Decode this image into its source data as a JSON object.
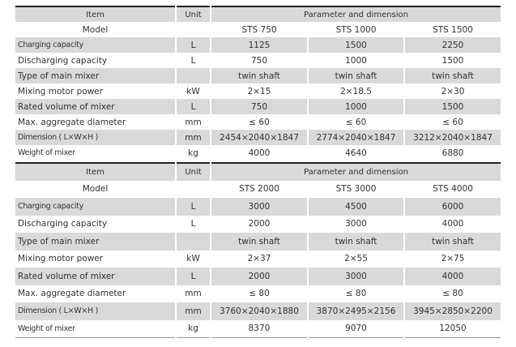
{
  "tables": [
    {
      "header": {
        "item": "Item",
        "unit": "Unit",
        "param": "Parameter and dimension"
      },
      "model_label": "Model",
      "models": [
        "STS 750",
        "STS 1000",
        "STS 1500"
      ],
      "rows": [
        {
          "label": "Charging capacity",
          "unit": "L",
          "values": [
            "1125",
            "1500",
            "2250"
          ]
        },
        {
          "label": "Discharging capacity",
          "unit": "L",
          "values": [
            "750",
            "1000",
            "1500"
          ]
        },
        {
          "label": "Type of main mixer",
          "unit": "",
          "values": [
            "twin shaft",
            "twin shaft",
            "twin shaft"
          ]
        },
        {
          "label": "Mixing motor power",
          "unit": "kW",
          "values": [
            "2×15",
            "2×18.5",
            "2×30"
          ]
        },
        {
          "label": "Rated volume of mixer",
          "unit": "L",
          "values": [
            "750",
            "1000",
            "1500"
          ]
        },
        {
          "label": "Max. aggregate diameter",
          "unit": "mm",
          "values": [
            "≤ 60",
            "≤ 60",
            "≤ 60"
          ]
        },
        {
          "label": "Dimension ( L×W×H )",
          "unit": "mm",
          "values": [
            "2454×2040×1847",
            "2774×2040×1847",
            "3212×2040×1847"
          ]
        },
        {
          "label": "Weight of mixer",
          "unit": "kg",
          "values": [
            "4000",
            "4640",
            "6880"
          ]
        }
      ]
    },
    {
      "header": {
        "item": "Item",
        "unit": "Unit",
        "param": "Parameter and dimension"
      },
      "model_label": "Model",
      "models": [
        "STS 2000",
        "STS 3000",
        "STS 4000"
      ],
      "rows": [
        {
          "label": "Charging capacity",
          "unit": "L",
          "values": [
            "3000",
            "4500",
            "6000"
          ]
        },
        {
          "label": "Discharging capacity",
          "unit": "L",
          "values": [
            "2000",
            "3000",
            "4000"
          ]
        },
        {
          "label": "Type of main mixer",
          "unit": "",
          "values": [
            "twin shaft",
            "twin shaft",
            "twin shaft"
          ]
        },
        {
          "label": "Mixing motor power",
          "unit": "kW",
          "values": [
            "2×37",
            "2×55",
            "2×75"
          ]
        },
        {
          "label": "Rated volume of mixer",
          "unit": "L",
          "values": [
            "2000",
            "3000",
            "4000"
          ]
        },
        {
          "label": "Max. aggregate diameter",
          "unit": "mm",
          "values": [
            "≤ 80",
            "≤ 80",
            "≤ 80"
          ]
        },
        {
          "label": "Dimension ( L×W×H )",
          "unit": "mm",
          "values": [
            "3760×2040×1880",
            "3870×2495×2156",
            "3945×2850×2200"
          ]
        },
        {
          "label": "Weight of mixer",
          "unit": "kg",
          "values": [
            "8370",
            "9070",
            "12050"
          ]
        }
      ]
    }
  ]
}
